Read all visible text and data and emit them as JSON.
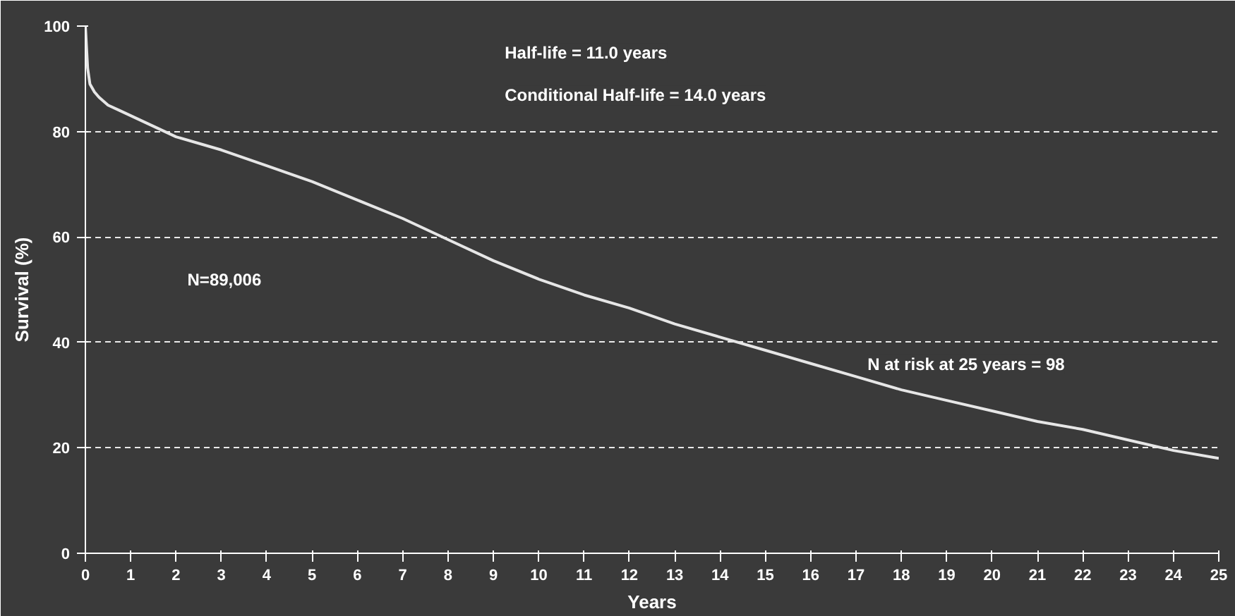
{
  "chart_data": {
    "type": "line",
    "xlabel": "Years",
    "ylabel": "Survival (%)",
    "x": [
      0,
      0.05,
      0.1,
      0.2,
      0.3,
      0.5,
      0.75,
      1,
      1.5,
      2,
      3,
      4,
      5,
      6,
      7,
      8,
      9,
      10,
      11,
      12,
      13,
      14,
      15,
      16,
      17,
      18,
      19,
      20,
      21,
      22,
      23,
      24,
      25
    ],
    "series": [
      {
        "color": "#e6e6e6",
        "values": [
          100,
          92,
          89,
          87.5,
          86.5,
          85,
          84,
          83,
          81,
          79,
          76.5,
          73.5,
          70.5,
          67,
          63.5,
          59.5,
          55.5,
          52,
          49,
          46.5,
          43.5,
          41,
          38.5,
          36,
          33.5,
          31,
          29,
          27,
          25,
          23.5,
          21.5,
          19.5,
          18
        ]
      }
    ],
    "xlim": [
      0,
      25
    ],
    "xticks": [
      0,
      1,
      2,
      3,
      4,
      5,
      6,
      7,
      8,
      9,
      10,
      11,
      12,
      13,
      14,
      15,
      16,
      17,
      18,
      19,
      20,
      21,
      22,
      23,
      24,
      25
    ],
    "ylim": [
      0,
      100
    ],
    "yticks": [
      0,
      20,
      40,
      60,
      80,
      100
    ],
    "grid": "y",
    "marker": "none",
    "line_style": "solid",
    "annotations": [
      "Half-life = 11.0 years",
      "Conditional Half-life = 14.0 years",
      "N=89,006",
      "N at risk at 25 years = 98"
    ]
  }
}
